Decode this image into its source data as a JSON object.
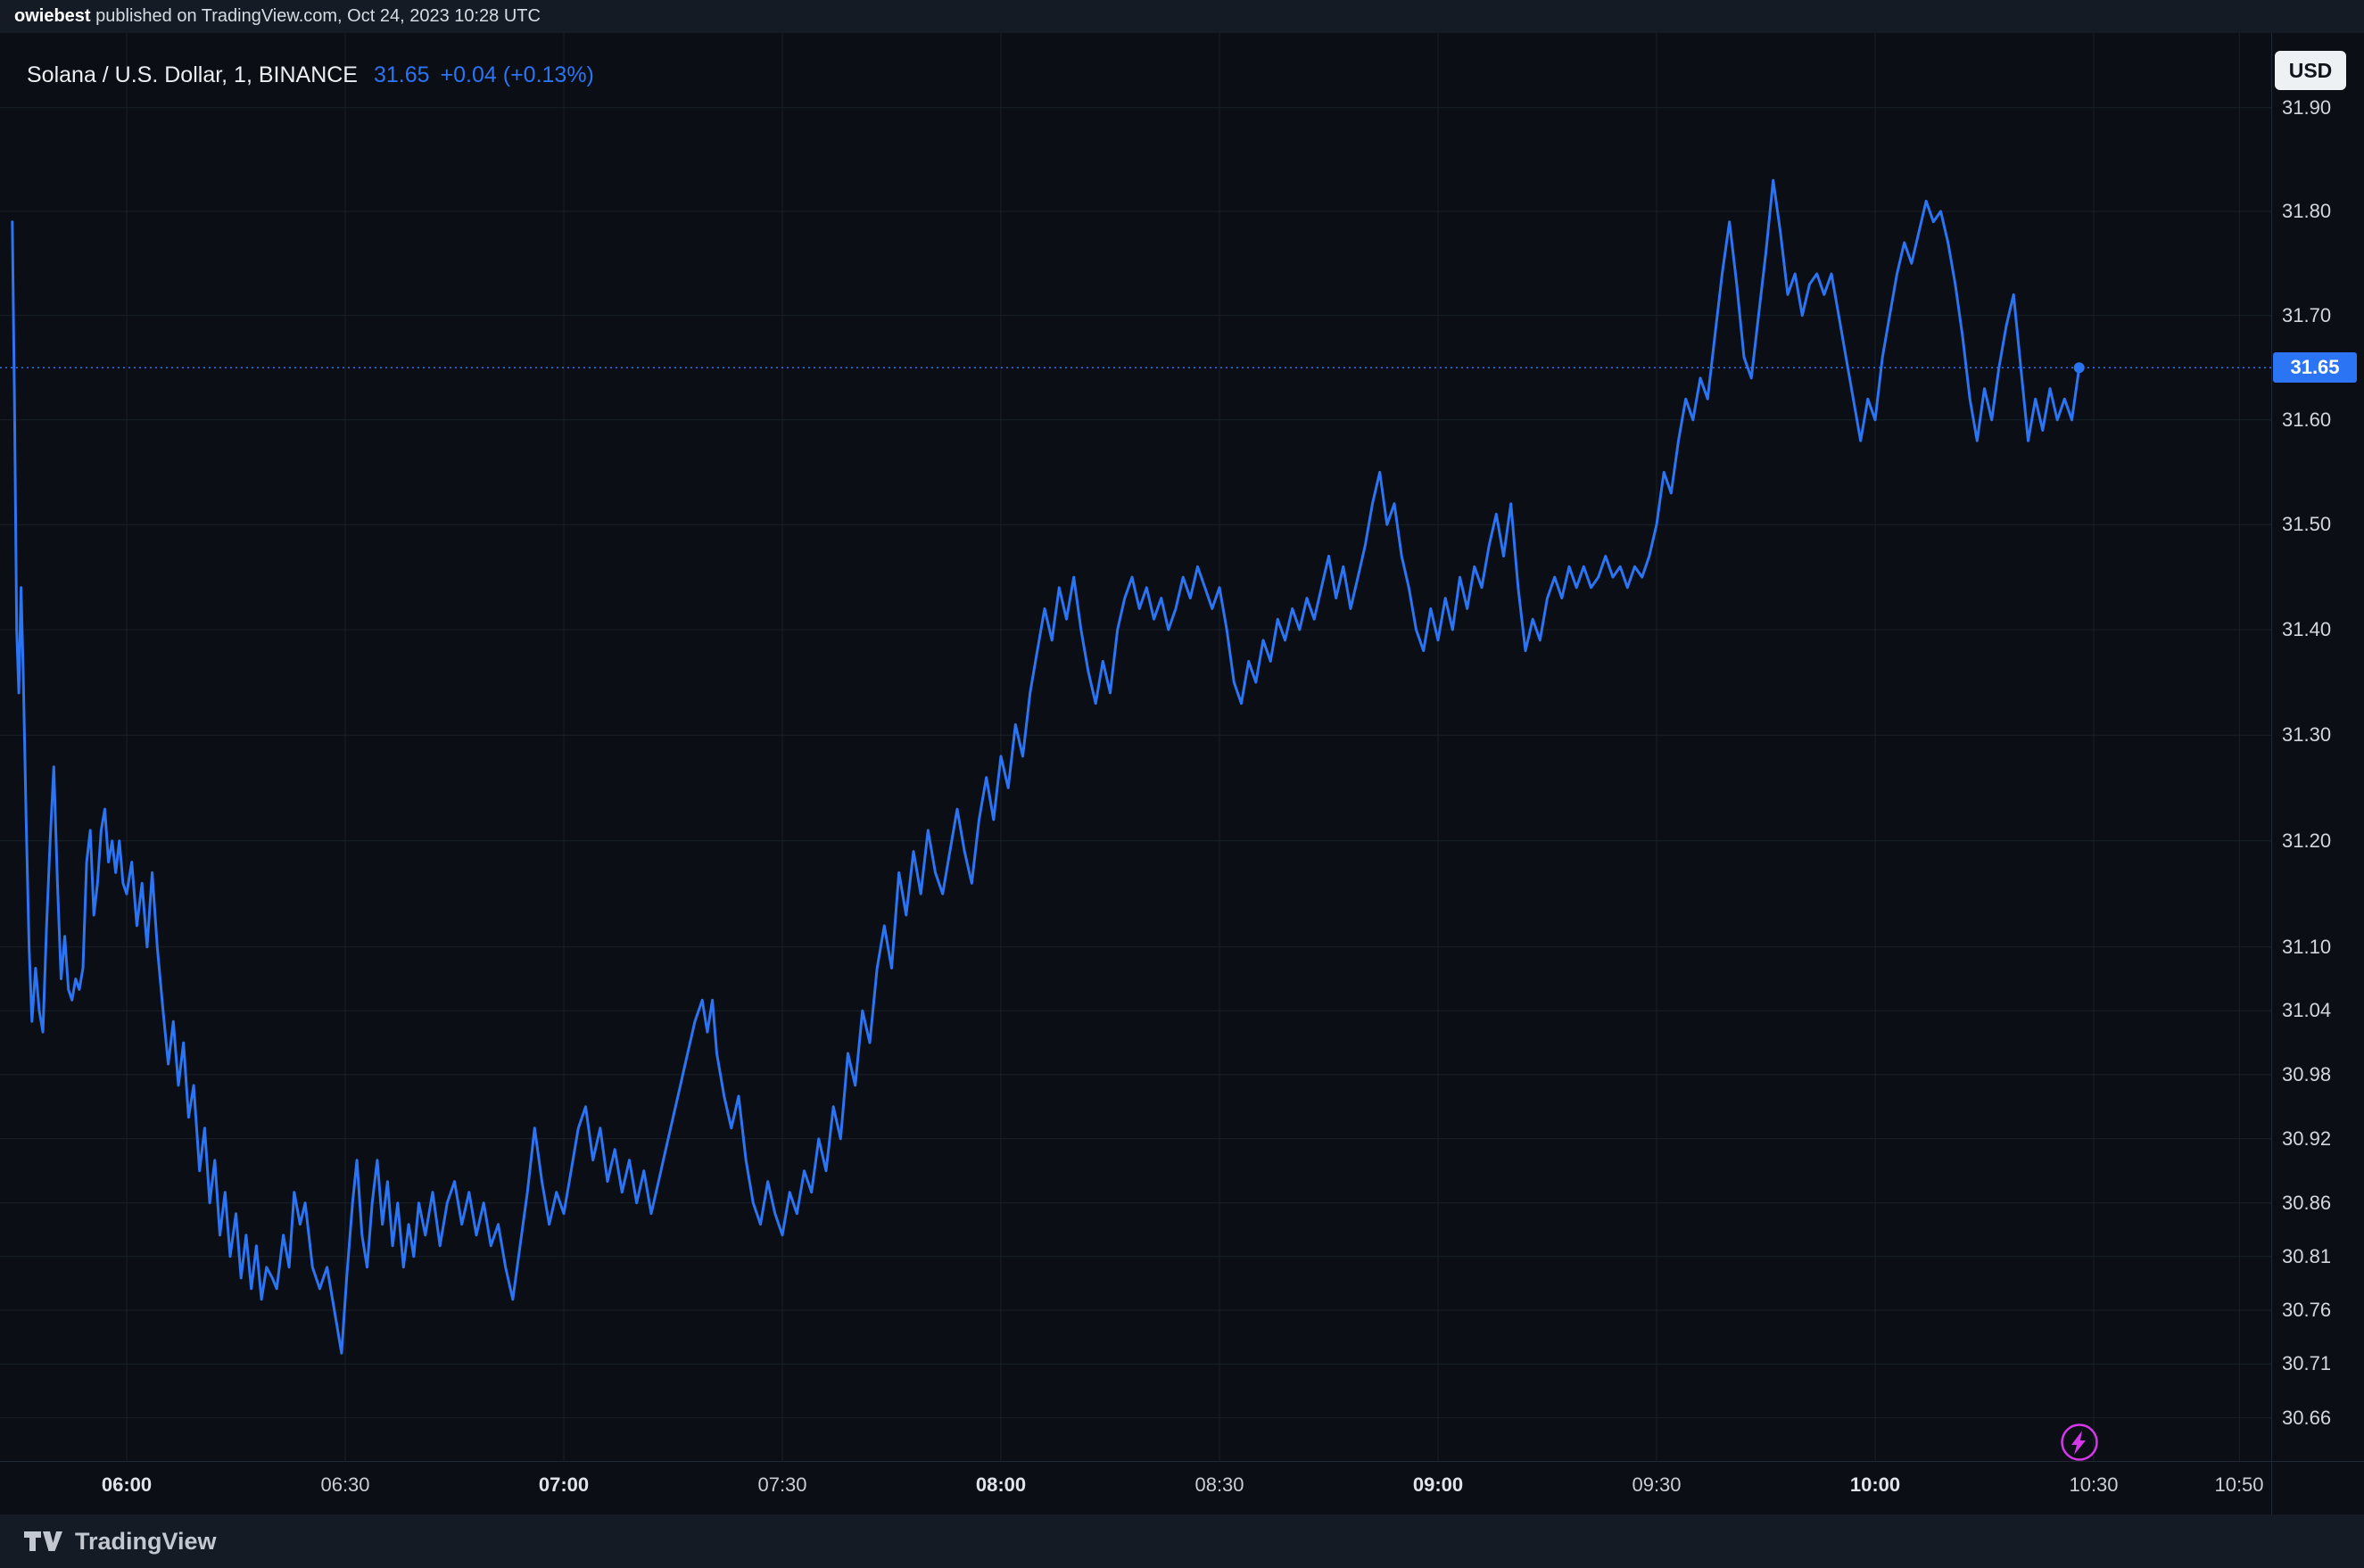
{
  "attribution": {
    "username": "owiebest",
    "rest": " published on TradingView.com, Oct 24, 2023 10:28 UTC"
  },
  "header": {
    "symbol": "Solana / U.S. Dollar, 1, BINANCE",
    "price": "31.65",
    "change": "+0.04 (+0.13%)"
  },
  "price_scale": {
    "currency_label": "USD",
    "current_price_label": "31.65"
  },
  "footer": {
    "brand": "TradingView"
  },
  "icons": {
    "flash": "lightning-bolt",
    "logo": "tradingview-mark"
  },
  "colors": {
    "accent": "#2b74f3",
    "flash_purple": "#d438e8",
    "background": "#0b0e14",
    "panel": "#151b24",
    "grid": "#1a2029",
    "axis_text": "#d2d6dd",
    "badge_text": "#ffffff",
    "usd_chip_bg": "#eef1f4"
  },
  "chart_data": {
    "type": "line",
    "title": "Solana / U.S. Dollar, 1, BINANCE",
    "symbol": "SOL/USD",
    "exchange": "BINANCE",
    "interval": "1",
    "current_price": 31.65,
    "change": "+0.04",
    "change_pct": "+0.13%",
    "x_unit": "minutes_after_06:00_UTC",
    "ylim": [
      30.62,
      31.95
    ],
    "scale": "log",
    "grid": true,
    "price_ticks": [
      31.9,
      31.8,
      31.7,
      31.6,
      31.5,
      31.4,
      31.3,
      31.2,
      31.1,
      31.04,
      30.98,
      30.92,
      30.86,
      30.81,
      30.76,
      30.71,
      30.66
    ],
    "time_ticks": [
      {
        "t": 0,
        "label": "06:00"
      },
      {
        "t": 30,
        "label": "06:30"
      },
      {
        "t": 60,
        "label": "07:00"
      },
      {
        "t": 90,
        "label": "07:30"
      },
      {
        "t": 120,
        "label": "08:00"
      },
      {
        "t": 150,
        "label": "08:30"
      },
      {
        "t": 180,
        "label": "09:00"
      },
      {
        "t": 210,
        "label": "09:30"
      },
      {
        "t": 240,
        "label": "10:00"
      },
      {
        "t": 270,
        "label": "10:30"
      },
      {
        "t": 290,
        "label": "10:50"
      }
    ],
    "series": [
      [
        -15.7,
        31.79
      ],
      [
        -15.4,
        31.62
      ],
      [
        -15.1,
        31.4
      ],
      [
        -14.8,
        31.34
      ],
      [
        -14.5,
        31.44
      ],
      [
        -14.2,
        31.36
      ],
      [
        -13.8,
        31.22
      ],
      [
        -13.4,
        31.1
      ],
      [
        -13.0,
        31.03
      ],
      [
        -12.5,
        31.08
      ],
      [
        -12.0,
        31.04
      ],
      [
        -11.5,
        31.02
      ],
      [
        -11.0,
        31.12
      ],
      [
        -10.5,
        31.2
      ],
      [
        -10.0,
        31.27
      ],
      [
        -9.5,
        31.16
      ],
      [
        -9.0,
        31.07
      ],
      [
        -8.5,
        31.11
      ],
      [
        -8.0,
        31.06
      ],
      [
        -7.5,
        31.05
      ],
      [
        -7.0,
        31.07
      ],
      [
        -6.5,
        31.06
      ],
      [
        -6.0,
        31.08
      ],
      [
        -5.5,
        31.18
      ],
      [
        -5.0,
        31.21
      ],
      [
        -4.5,
        31.13
      ],
      [
        -4.0,
        31.16
      ],
      [
        -3.5,
        31.21
      ],
      [
        -3.0,
        31.23
      ],
      [
        -2.5,
        31.18
      ],
      [
        -2.0,
        31.2
      ],
      [
        -1.5,
        31.17
      ],
      [
        -1.0,
        31.2
      ],
      [
        -0.5,
        31.16
      ],
      [
        0,
        31.15
      ],
      [
        0.7,
        31.18
      ],
      [
        1.4,
        31.12
      ],
      [
        2.1,
        31.16
      ],
      [
        2.8,
        31.1
      ],
      [
        3.5,
        31.17
      ],
      [
        4.2,
        31.1
      ],
      [
        5.0,
        31.04
      ],
      [
        5.7,
        30.99
      ],
      [
        6.4,
        31.03
      ],
      [
        7.1,
        30.97
      ],
      [
        7.8,
        31.01
      ],
      [
        8.5,
        30.94
      ],
      [
        9.2,
        30.97
      ],
      [
        10.0,
        30.89
      ],
      [
        10.7,
        30.93
      ],
      [
        11.4,
        30.86
      ],
      [
        12.1,
        30.9
      ],
      [
        12.8,
        30.83
      ],
      [
        13.5,
        30.87
      ],
      [
        14.2,
        30.81
      ],
      [
        15.0,
        30.85
      ],
      [
        15.7,
        30.79
      ],
      [
        16.4,
        30.83
      ],
      [
        17.1,
        30.78
      ],
      [
        17.8,
        30.82
      ],
      [
        18.5,
        30.77
      ],
      [
        19.2,
        30.8
      ],
      [
        20.0,
        30.79
      ],
      [
        20.6,
        30.78
      ],
      [
        21.5,
        30.83
      ],
      [
        22.3,
        30.8
      ],
      [
        23.0,
        30.87
      ],
      [
        23.8,
        30.84
      ],
      [
        24.5,
        30.86
      ],
      [
        25.5,
        30.8
      ],
      [
        26.5,
        30.78
      ],
      [
        27.5,
        30.8
      ],
      [
        28.5,
        30.76
      ],
      [
        29.5,
        30.72
      ],
      [
        30.2,
        30.79
      ],
      [
        31.0,
        30.86
      ],
      [
        31.6,
        30.9
      ],
      [
        32.3,
        30.83
      ],
      [
        33.0,
        30.8
      ],
      [
        33.7,
        30.86
      ],
      [
        34.4,
        30.9
      ],
      [
        35.1,
        30.84
      ],
      [
        35.8,
        30.88
      ],
      [
        36.5,
        30.82
      ],
      [
        37.2,
        30.86
      ],
      [
        38.0,
        30.8
      ],
      [
        38.7,
        30.84
      ],
      [
        39.4,
        30.81
      ],
      [
        40.1,
        30.86
      ],
      [
        41,
        30.83
      ],
      [
        42,
        30.87
      ],
      [
        43,
        30.82
      ],
      [
        44,
        30.86
      ],
      [
        45,
        30.88
      ],
      [
        46,
        30.84
      ],
      [
        47,
        30.87
      ],
      [
        48,
        30.83
      ],
      [
        49,
        30.86
      ],
      [
        50,
        30.82
      ],
      [
        51,
        30.84
      ],
      [
        52,
        30.8
      ],
      [
        53,
        30.77
      ],
      [
        54,
        30.82
      ],
      [
        55,
        30.87
      ],
      [
        56,
        30.93
      ],
      [
        57,
        30.88
      ],
      [
        58,
        30.84
      ],
      [
        59,
        30.87
      ],
      [
        60,
        30.85
      ],
      [
        61,
        30.89
      ],
      [
        62,
        30.93
      ],
      [
        63,
        30.95
      ],
      [
        64,
        30.9
      ],
      [
        65,
        30.93
      ],
      [
        66,
        30.88
      ],
      [
        67,
        30.91
      ],
      [
        68,
        30.87
      ],
      [
        69,
        30.9
      ],
      [
        70,
        30.86
      ],
      [
        71,
        30.89
      ],
      [
        72,
        30.85
      ],
      [
        73,
        30.88
      ],
      [
        74,
        30.91
      ],
      [
        75,
        30.94
      ],
      [
        76,
        30.97
      ],
      [
        77,
        31.0
      ],
      [
        78,
        31.03
      ],
      [
        79,
        31.05
      ],
      [
        79.7,
        31.02
      ],
      [
        80.4,
        31.05
      ],
      [
        81,
        31.0
      ],
      [
        82,
        30.96
      ],
      [
        83,
        30.93
      ],
      [
        84,
        30.96
      ],
      [
        85,
        30.9
      ],
      [
        86,
        30.86
      ],
      [
        87,
        30.84
      ],
      [
        88,
        30.88
      ],
      [
        89,
        30.85
      ],
      [
        90,
        30.83
      ],
      [
        91,
        30.87
      ],
      [
        92,
        30.85
      ],
      [
        93,
        30.89
      ],
      [
        94,
        30.87
      ],
      [
        95,
        30.92
      ],
      [
        96,
        30.89
      ],
      [
        97,
        30.95
      ],
      [
        98,
        30.92
      ],
      [
        99,
        31.0
      ],
      [
        100,
        30.97
      ],
      [
        101,
        31.04
      ],
      [
        102,
        31.01
      ],
      [
        103,
        31.08
      ],
      [
        104,
        31.12
      ],
      [
        105,
        31.08
      ],
      [
        106,
        31.17
      ],
      [
        107,
        31.13
      ],
      [
        108,
        31.19
      ],
      [
        109,
        31.15
      ],
      [
        110,
        31.21
      ],
      [
        111,
        31.17
      ],
      [
        112,
        31.15
      ],
      [
        113,
        31.19
      ],
      [
        114,
        31.23
      ],
      [
        115,
        31.19
      ],
      [
        116,
        31.16
      ],
      [
        117,
        31.22
      ],
      [
        118,
        31.26
      ],
      [
        119,
        31.22
      ],
      [
        120,
        31.28
      ],
      [
        121,
        31.25
      ],
      [
        122,
        31.31
      ],
      [
        123,
        31.28
      ],
      [
        124,
        31.34
      ],
      [
        125,
        31.38
      ],
      [
        126,
        31.42
      ],
      [
        127,
        31.39
      ],
      [
        128,
        31.44
      ],
      [
        129,
        31.41
      ],
      [
        130,
        31.45
      ],
      [
        131,
        31.4
      ],
      [
        132,
        31.36
      ],
      [
        133,
        31.33
      ],
      [
        134,
        31.37
      ],
      [
        135,
        31.34
      ],
      [
        136,
        31.4
      ],
      [
        137,
        31.43
      ],
      [
        138,
        31.45
      ],
      [
        139,
        31.42
      ],
      [
        140,
        31.44
      ],
      [
        141,
        31.41
      ],
      [
        142,
        31.43
      ],
      [
        143,
        31.4
      ],
      [
        144,
        31.42
      ],
      [
        145,
        31.45
      ],
      [
        146,
        31.43
      ],
      [
        147,
        31.46
      ],
      [
        148,
        31.44
      ],
      [
        149,
        31.42
      ],
      [
        150,
        31.44
      ],
      [
        151,
        31.4
      ],
      [
        152,
        31.35
      ],
      [
        153,
        31.33
      ],
      [
        154,
        31.37
      ],
      [
        155,
        31.35
      ],
      [
        156,
        31.39
      ],
      [
        157,
        31.37
      ],
      [
        158,
        31.41
      ],
      [
        159,
        31.39
      ],
      [
        160,
        31.42
      ],
      [
        161,
        31.4
      ],
      [
        162,
        31.43
      ],
      [
        163,
        31.41
      ],
      [
        164,
        31.44
      ],
      [
        165,
        31.47
      ],
      [
        166,
        31.43
      ],
      [
        167,
        31.46
      ],
      [
        168,
        31.42
      ],
      [
        169,
        31.45
      ],
      [
        170,
        31.48
      ],
      [
        171,
        31.52
      ],
      [
        172,
        31.55
      ],
      [
        173,
        31.5
      ],
      [
        174,
        31.52
      ],
      [
        175,
        31.47
      ],
      [
        176,
        31.44
      ],
      [
        177,
        31.4
      ],
      [
        178,
        31.38
      ],
      [
        179,
        31.42
      ],
      [
        180,
        31.39
      ],
      [
        181,
        31.43
      ],
      [
        182,
        31.4
      ],
      [
        183,
        31.45
      ],
      [
        184,
        31.42
      ],
      [
        185,
        31.46
      ],
      [
        186,
        31.44
      ],
      [
        187,
        31.48
      ],
      [
        188,
        31.51
      ],
      [
        189,
        31.47
      ],
      [
        190,
        31.52
      ],
      [
        191,
        31.44
      ],
      [
        192,
        31.38
      ],
      [
        193,
        31.41
      ],
      [
        194,
        31.39
      ],
      [
        195,
        31.43
      ],
      [
        196,
        31.45
      ],
      [
        197,
        31.43
      ],
      [
        198,
        31.46
      ],
      [
        199,
        31.44
      ],
      [
        200,
        31.46
      ],
      [
        201,
        31.44
      ],
      [
        202,
        31.45
      ],
      [
        203,
        31.47
      ],
      [
        204,
        31.45
      ],
      [
        205,
        31.46
      ],
      [
        206,
        31.44
      ],
      [
        207,
        31.46
      ],
      [
        208,
        31.45
      ],
      [
        209,
        31.47
      ],
      [
        210,
        31.5
      ],
      [
        211,
        31.55
      ],
      [
        212,
        31.53
      ],
      [
        213,
        31.58
      ],
      [
        214,
        31.62
      ],
      [
        215,
        31.6
      ],
      [
        216,
        31.64
      ],
      [
        217,
        31.62
      ],
      [
        218,
        31.68
      ],
      [
        219,
        31.74
      ],
      [
        220,
        31.79
      ],
      [
        221,
        31.73
      ],
      [
        222,
        31.66
      ],
      [
        223,
        31.64
      ],
      [
        224,
        31.7
      ],
      [
        225,
        31.76
      ],
      [
        226,
        31.83
      ],
      [
        227,
        31.78
      ],
      [
        228,
        31.72
      ],
      [
        229,
        31.74
      ],
      [
        230,
        31.7
      ],
      [
        231,
        31.73
      ],
      [
        232,
        31.74
      ],
      [
        233,
        31.72
      ],
      [
        234,
        31.74
      ],
      [
        235,
        31.7
      ],
      [
        236,
        31.66
      ],
      [
        237,
        31.62
      ],
      [
        238,
        31.58
      ],
      [
        239,
        31.62
      ],
      [
        240,
        31.6
      ],
      [
        241,
        31.66
      ],
      [
        242,
        31.7
      ],
      [
        243,
        31.74
      ],
      [
        244,
        31.77
      ],
      [
        245,
        31.75
      ],
      [
        246,
        31.78
      ],
      [
        247,
        31.81
      ],
      [
        248,
        31.79
      ],
      [
        249,
        31.8
      ],
      [
        250,
        31.77
      ],
      [
        251,
        31.73
      ],
      [
        252,
        31.68
      ],
      [
        253,
        31.62
      ],
      [
        254,
        31.58
      ],
      [
        255,
        31.63
      ],
      [
        256,
        31.6
      ],
      [
        257,
        31.65
      ],
      [
        258,
        31.69
      ],
      [
        259,
        31.72
      ],
      [
        260,
        31.65
      ],
      [
        261,
        31.58
      ],
      [
        262,
        31.62
      ],
      [
        263,
        31.59
      ],
      [
        264,
        31.63
      ],
      [
        265,
        31.6
      ],
      [
        266,
        31.62
      ],
      [
        267,
        31.6
      ],
      [
        268,
        31.65
      ]
    ]
  }
}
